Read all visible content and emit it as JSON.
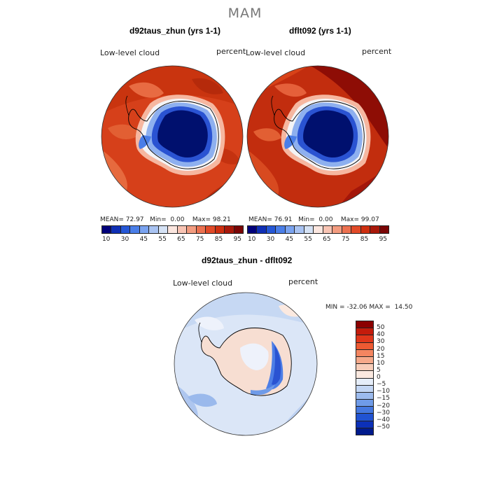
{
  "season": "MAM",
  "panels": [
    {
      "title": "d92taus_zhun (yrs 1-1)",
      "variable": "Low-level cloud",
      "units": "percent",
      "stats": {
        "mean": "72.97",
        "min": "0.00",
        "max": "98.21"
      }
    },
    {
      "title": "dflt092 (yrs 1-1)",
      "variable": "Low-level cloud",
      "units": "percent",
      "stats": {
        "mean": "76.91",
        "min": "0.00",
        "max": "99.07"
      }
    }
  ],
  "stat_labels": {
    "mean": "MEAN=",
    "min": "Min=",
    "max": "Max="
  },
  "top_colorbar": {
    "colors": [
      "#00007a",
      "#0f2fb5",
      "#2557d6",
      "#4a7ee8",
      "#7aa3f0",
      "#a9c3f2",
      "#d5e2f5",
      "#fbe6df",
      "#f8c4b4",
      "#f39c80",
      "#ec7150",
      "#e14a28",
      "#ce2f10",
      "#a8180a",
      "#7a0505"
    ],
    "labels": [
      "10",
      "30",
      "45",
      "55",
      "65",
      "75",
      "85",
      "95"
    ]
  },
  "diff_panel": {
    "title": "d92taus_zhun - dflt092",
    "variable": "Low-level cloud",
    "units": "percent",
    "min_label": "MIN =",
    "min": "-32.06",
    "max_label": "MAX =",
    "max": "14.50"
  },
  "diff_colorbar": {
    "colors": [
      "#8b0000",
      "#c41b0b",
      "#e0361a",
      "#ee5a32",
      "#f48560",
      "#f6a98a",
      "#f8cdb9",
      "#fbe9e0",
      "#e6eefa",
      "#c3d6f4",
      "#9cbbee",
      "#6f9be8",
      "#4578e0",
      "#2153d2",
      "#0c30b8",
      "#001a8c"
    ],
    "labels": [
      "50",
      "40",
      "30",
      "20",
      "15",
      "10",
      "5",
      "0",
      "−5",
      "−10",
      "−15",
      "−20",
      "−30",
      "−40",
      "−50"
    ]
  },
  "colors": {
    "ocean_high": "#d23a16",
    "ocean_mid": "#e4552b",
    "antarctica_core": "#00106e",
    "diff_base": "#dde8f7",
    "coastline": "#000000"
  }
}
